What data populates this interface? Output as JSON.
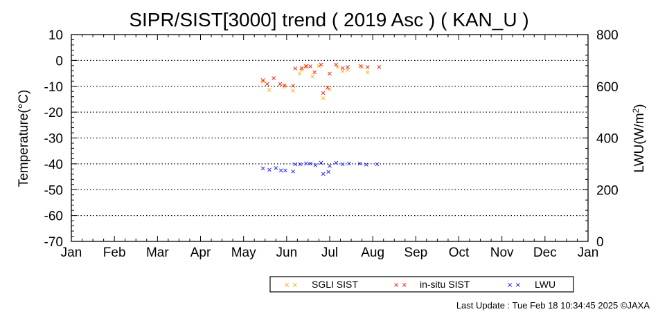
{
  "footer": "Last Update : Tue Feb 18 10:34:45 2025  ©JAXA",
  "colors": {
    "sgli": "#ffa500",
    "insitu": "#ff0000",
    "lwu": "#0000ff",
    "grid": "#000000"
  },
  "chart_data": {
    "type": "scatter",
    "title": "SIPR/SIST[3000] trend ( 2019 Asc ) ( KAN_U )",
    "ylabel": "Temperature(°C)",
    "y2label_main": "LWU(W/m",
    "y2label_sup": "2",
    "y2label_end": ")",
    "ylim": [
      -70,
      10
    ],
    "y2lim": [
      0,
      800
    ],
    "xlim": [
      0,
      12
    ],
    "grid": "dotted horizontal",
    "legend_position": "bottom",
    "xticks": [
      {
        "x": 0,
        "label": "Jan"
      },
      {
        "x": 1,
        "label": "Feb"
      },
      {
        "x": 2,
        "label": "Mar"
      },
      {
        "x": 3,
        "label": "Apr"
      },
      {
        "x": 4,
        "label": "May"
      },
      {
        "x": 5,
        "label": "Jun"
      },
      {
        "x": 6,
        "label": "Jul"
      },
      {
        "x": 7,
        "label": "Aug"
      },
      {
        "x": 8,
        "label": "Sep"
      },
      {
        "x": 9,
        "label": "Oct"
      },
      {
        "x": 10,
        "label": "Nov"
      },
      {
        "x": 11,
        "label": "Dec"
      },
      {
        "x": 12,
        "label": "Jan"
      }
    ],
    "yticks": [
      "10",
      "0",
      "-10",
      "-20",
      "-30",
      "-40",
      "-50",
      "-60",
      "-70"
    ],
    "y2ticks": [
      "800",
      "600",
      "400",
      "200",
      "0"
    ],
    "series": [
      {
        "name": "SGLI SIST",
        "axis": "left",
        "color_key": "sgli",
        "points": [
          [
            4.45,
            -8
          ],
          [
            4.6,
            -11.3
          ],
          [
            4.95,
            -10
          ],
          [
            5.15,
            -11.5
          ],
          [
            5.3,
            -5
          ],
          [
            5.35,
            -3.5
          ],
          [
            5.45,
            -2.5
          ],
          [
            5.6,
            -6
          ],
          [
            5.75,
            -2
          ],
          [
            5.85,
            -14.5
          ],
          [
            6.0,
            -11
          ],
          [
            6.18,
            -2.5
          ],
          [
            6.3,
            -4
          ],
          [
            6.42,
            -3.5
          ],
          [
            6.75,
            -2.5
          ],
          [
            6.88,
            -4.5
          ]
        ]
      },
      {
        "name": "in-situ SIST",
        "axis": "left",
        "color_key": "insitu",
        "points": [
          [
            4.45,
            -7.5
          ],
          [
            4.55,
            -9
          ],
          [
            4.7,
            -6.7
          ],
          [
            4.85,
            -9
          ],
          [
            4.95,
            -9.5
          ],
          [
            5.15,
            -9.7
          ],
          [
            5.2,
            -3
          ],
          [
            5.35,
            -2.8
          ],
          [
            5.45,
            -2
          ],
          [
            5.55,
            -2.2
          ],
          [
            5.65,
            -4.5
          ],
          [
            5.8,
            -1.5
          ],
          [
            5.85,
            -12.5
          ],
          [
            5.95,
            -10.5
          ],
          [
            6.0,
            -5
          ],
          [
            6.15,
            -1.5
          ],
          [
            6.3,
            -2.8
          ],
          [
            6.42,
            -2.5
          ],
          [
            6.72,
            -2
          ],
          [
            6.88,
            -2.5
          ],
          [
            7.15,
            -2.5
          ]
        ]
      },
      {
        "name": "LWU",
        "axis": "right",
        "color_key": "lwu",
        "points": [
          [
            4.45,
            283
          ],
          [
            4.6,
            278
          ],
          [
            4.75,
            285
          ],
          [
            4.87,
            275
          ],
          [
            4.97,
            276
          ],
          [
            5.15,
            272
          ],
          [
            5.2,
            300
          ],
          [
            5.32,
            300
          ],
          [
            5.45,
            302
          ],
          [
            5.55,
            302
          ],
          [
            5.67,
            296
          ],
          [
            5.8,
            305
          ],
          [
            5.85,
            262
          ],
          [
            5.97,
            270
          ],
          [
            6.0,
            293
          ],
          [
            6.15,
            305
          ],
          [
            6.3,
            300
          ],
          [
            6.45,
            302
          ],
          [
            6.7,
            302
          ],
          [
            6.85,
            298
          ],
          [
            7.1,
            300
          ]
        ]
      }
    ]
  }
}
